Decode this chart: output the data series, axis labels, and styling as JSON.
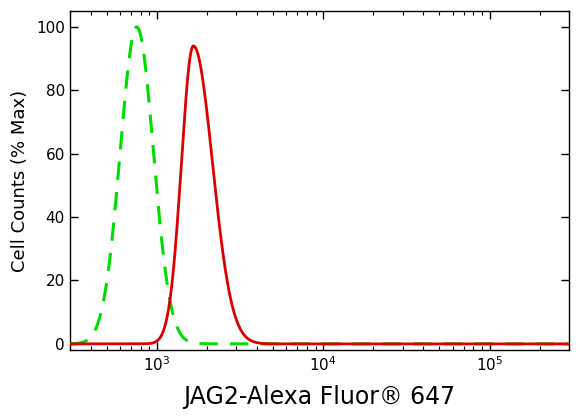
{
  "title": "",
  "xlabel": "JAG2-Alexa Fluor® 647",
  "ylabel": "Cell Counts (% Max)",
  "xlim_log": [
    300,
    300000
  ],
  "ylim": [
    -2,
    105
  ],
  "background_color": "#ffffff",
  "green_dashed": {
    "color": "#00dd00",
    "linewidth": 2.2,
    "peak_log": 2.88,
    "peak_height": 100,
    "sigma_log": 0.1
  },
  "red_solid": {
    "color": "#dd0000",
    "linewidth": 2.0,
    "peak_log": 3.22,
    "peak_height": 94,
    "sigma_log": 0.072
  },
  "xtick_major": [
    1000,
    10000,
    100000
  ],
  "ytick_major": [
    0,
    20,
    40,
    60,
    80,
    100
  ],
  "xlabel_fontsize": 17,
  "ylabel_fontsize": 13,
  "tick_fontsize": 11
}
